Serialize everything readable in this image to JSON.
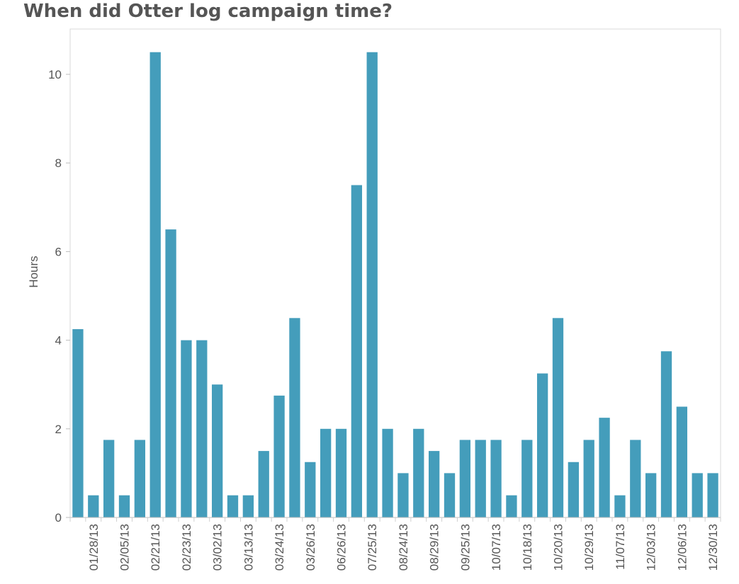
{
  "chart_data": {
    "type": "bar",
    "title": "When did Otter log campaign time?",
    "xlabel": "",
    "ylabel": "Hours",
    "ylim": [
      0,
      10.5
    ],
    "yticks": [
      0,
      2,
      4,
      6,
      8,
      10
    ],
    "grid": false,
    "legend": "none",
    "bar_color": "#449dbb",
    "x_tick_labels": [
      "01/28/13",
      "02/05/13",
      "02/21/13",
      "02/23/13",
      "03/02/13",
      "03/13/13",
      "03/24/13",
      "03/26/13",
      "06/26/13",
      "07/25/13",
      "08/24/13",
      "08/29/13",
      "09/25/13",
      "10/07/13",
      "10/18/13",
      "10/20/13",
      "10/29/13",
      "11/07/13",
      "12/03/13",
      "12/06/13",
      "12/30/13"
    ],
    "x_tick_bar_index": [
      1,
      3,
      5,
      7,
      9,
      11,
      13,
      15,
      17,
      19,
      21,
      23,
      25,
      27,
      29,
      31,
      33,
      35,
      37,
      39,
      41
    ],
    "values": [
      4.25,
      0.5,
      1.75,
      0.5,
      1.75,
      10.5,
      6.5,
      4,
      4,
      3,
      0.5,
      0.5,
      1.5,
      2.75,
      4.5,
      1.25,
      2,
      2,
      7.5,
      10.5,
      2,
      1,
      2,
      1.5,
      1,
      1.75,
      1.75,
      1.75,
      0.5,
      1.75,
      3.25,
      4.5,
      1.25,
      1.75,
      2.25,
      0.5,
      1.75,
      1,
      3.75,
      2.5,
      1,
      1
    ]
  }
}
